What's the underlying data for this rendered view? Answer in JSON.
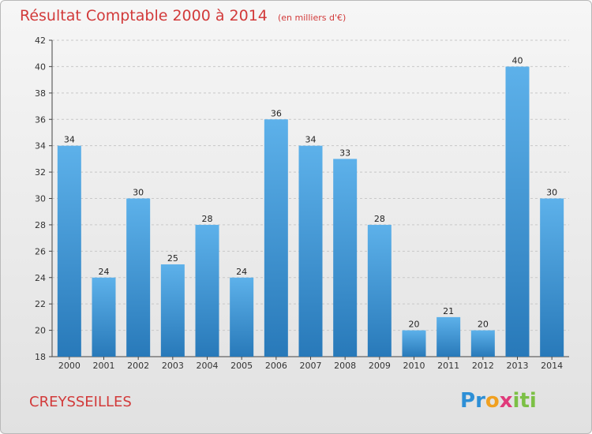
{
  "chart_data": {
    "type": "bar",
    "title": "Résultat Comptable 2000 à 2014",
    "subtitle": "(en milliers d'€)",
    "categories": [
      "2000",
      "2001",
      "2002",
      "2003",
      "2004",
      "2005",
      "2006",
      "2007",
      "2008",
      "2009",
      "2010",
      "2011",
      "2012",
      "2013",
      "2014"
    ],
    "values": [
      34,
      24,
      30,
      25,
      28,
      24,
      36,
      34,
      33,
      28,
      20,
      21,
      20,
      40,
      30
    ],
    "ylim": [
      18,
      42
    ],
    "yticks": [
      18,
      20,
      22,
      24,
      26,
      28,
      30,
      32,
      34,
      36,
      38,
      40,
      42
    ],
    "xlabel": "",
    "ylabel": "",
    "grid": true
  },
  "footer": {
    "city": "CREYSSEILLES",
    "logo_letters": [
      "P",
      "r",
      "o",
      "x",
      "i",
      "t",
      "i"
    ]
  },
  "colors": {
    "bar_light": "#5db1ea",
    "bar_dark": "#2879b9",
    "title": "#d23a3a",
    "logo": [
      "#2d8fd6",
      "#2d8fd6",
      "#f0a020",
      "#e03a7a",
      "#7cc045",
      "#7cc045",
      "#7cc045"
    ]
  }
}
